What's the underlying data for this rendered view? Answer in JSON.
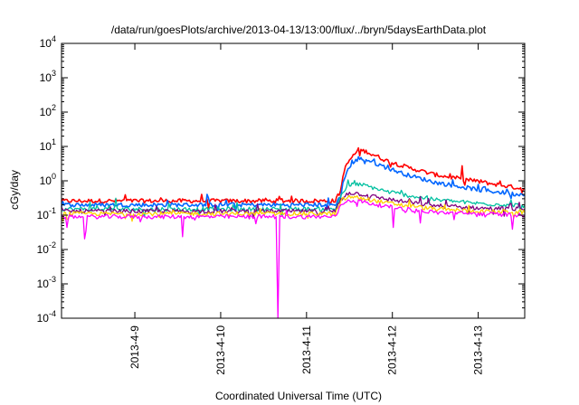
{
  "chart_data": {
    "type": "line",
    "title": "/data/run/goesPlots/archive/2013-04-13/13:00/flux/../bryn/5daysEarthData.plot",
    "xlabel": "Coordinated Universal Time (UTC)",
    "ylabel": "cGy/day",
    "y_scale": "log",
    "ylim": [
      0.0001,
      10000
    ],
    "xlim": [
      "2013-04-08T03:30",
      "2013-04-13T13:00"
    ],
    "grid": false,
    "legend": "none",
    "y_ticks": [
      {
        "base": "10",
        "exp": "-4",
        "value": 0.0001
      },
      {
        "base": "10",
        "exp": "-3",
        "value": 0.001
      },
      {
        "base": "10",
        "exp": "-2",
        "value": 0.01
      },
      {
        "base": "10",
        "exp": "-1",
        "value": 0.1
      },
      {
        "base": "10",
        "exp": "0",
        "value": 1
      },
      {
        "base": "10",
        "exp": "1",
        "value": 10
      },
      {
        "base": "10",
        "exp": "2",
        "value": 100
      },
      {
        "base": "10",
        "exp": "3",
        "value": 1000
      },
      {
        "base": "10",
        "exp": "4",
        "value": 10000
      }
    ],
    "x_ticks": [
      {
        "label": "2013-4-9",
        "value": "2013-04-09T00:00"
      },
      {
        "label": "2013-4-10",
        "value": "2013-04-10T00:00"
      },
      {
        "label": "2013-4-11",
        "value": "2013-04-11T00:00"
      },
      {
        "label": "2013-4-12",
        "value": "2013-04-12T00:00"
      },
      {
        "label": "2013-4-13",
        "value": "2013-04-13T00:00"
      }
    ],
    "series": [
      {
        "color": "#ff0000",
        "values": [
          {
            "x": "2013-04-08T03:30",
            "y": 0.26
          },
          {
            "x": "2013-04-09T00:00",
            "y": 0.26
          },
          {
            "x": "2013-04-10T00:00",
            "y": 0.26
          },
          {
            "x": "2013-04-11T00:00",
            "y": 0.26
          },
          {
            "x": "2013-04-11T08:00",
            "y": 0.26
          },
          {
            "x": "2013-04-11T09:30",
            "y": 0.5
          },
          {
            "x": "2013-04-11T10:30",
            "y": 2.0
          },
          {
            "x": "2013-04-11T12:00",
            "y": 4.0
          },
          {
            "x": "2013-04-11T14:30",
            "y": 8.0
          },
          {
            "x": "2013-04-11T17:00",
            "y": 7.0
          },
          {
            "x": "2013-04-11T22:00",
            "y": 4.0
          },
          {
            "x": "2013-04-12T04:00",
            "y": 2.5
          },
          {
            "x": "2013-04-12T12:00",
            "y": 1.5
          },
          {
            "x": "2013-04-13T00:00",
            "y": 0.95
          },
          {
            "x": "2013-04-13T13:00",
            "y": 0.58
          }
        ]
      },
      {
        "color": "#0066ff",
        "values": [
          {
            "x": "2013-04-08T03:30",
            "y": 0.2
          },
          {
            "x": "2013-04-09T00:00",
            "y": 0.2
          },
          {
            "x": "2013-04-10T00:00",
            "y": 0.2
          },
          {
            "x": "2013-04-11T00:00",
            "y": 0.2
          },
          {
            "x": "2013-04-11T08:00",
            "y": 0.2
          },
          {
            "x": "2013-04-11T09:30",
            "y": 0.35
          },
          {
            "x": "2013-04-11T10:30",
            "y": 1.2
          },
          {
            "x": "2013-04-11T12:00",
            "y": 2.5
          },
          {
            "x": "2013-04-11T14:30",
            "y": 4.5
          },
          {
            "x": "2013-04-11T17:00",
            "y": 4.0
          },
          {
            "x": "2013-04-11T22:00",
            "y": 2.5
          },
          {
            "x": "2013-04-12T04:00",
            "y": 1.5
          },
          {
            "x": "2013-04-12T12:00",
            "y": 0.9
          },
          {
            "x": "2013-04-13T00:00",
            "y": 0.55
          },
          {
            "x": "2013-04-13T13:00",
            "y": 0.38
          }
        ]
      },
      {
        "color": "#00c0a0",
        "values": [
          {
            "x": "2013-04-08T03:30",
            "y": 0.15
          },
          {
            "x": "2013-04-09T00:00",
            "y": 0.15
          },
          {
            "x": "2013-04-10T00:00",
            "y": 0.15
          },
          {
            "x": "2013-04-11T00:00",
            "y": 0.15
          },
          {
            "x": "2013-04-11T08:00",
            "y": 0.15
          },
          {
            "x": "2013-04-11T10:00",
            "y": 0.45
          },
          {
            "x": "2013-04-11T12:00",
            "y": 0.75
          },
          {
            "x": "2013-04-11T14:30",
            "y": 0.8
          },
          {
            "x": "2013-04-11T17:00",
            "y": 0.7
          },
          {
            "x": "2013-04-11T22:00",
            "y": 0.5
          },
          {
            "x": "2013-04-12T04:00",
            "y": 0.38
          },
          {
            "x": "2013-04-12T12:00",
            "y": 0.28
          },
          {
            "x": "2013-04-13T00:00",
            "y": 0.22
          },
          {
            "x": "2013-04-13T13:00",
            "y": 0.19
          }
        ]
      },
      {
        "color": "#800080",
        "values": [
          {
            "x": "2013-04-08T03:30",
            "y": 0.13
          },
          {
            "x": "2013-04-09T00:00",
            "y": 0.13
          },
          {
            "x": "2013-04-10T00:00",
            "y": 0.13
          },
          {
            "x": "2013-04-11T00:00",
            "y": 0.13
          },
          {
            "x": "2013-04-11T08:00",
            "y": 0.13
          },
          {
            "x": "2013-04-11T10:00",
            "y": 0.35
          },
          {
            "x": "2013-04-11T12:00",
            "y": 0.45
          },
          {
            "x": "2013-04-11T14:30",
            "y": 0.42
          },
          {
            "x": "2013-04-11T17:00",
            "y": 0.38
          },
          {
            "x": "2013-04-11T22:00",
            "y": 0.3
          },
          {
            "x": "2013-04-12T04:00",
            "y": 0.24
          },
          {
            "x": "2013-04-12T12:00",
            "y": 0.19
          },
          {
            "x": "2013-04-13T00:00",
            "y": 0.16
          },
          {
            "x": "2013-04-13T13:00",
            "y": 0.15
          }
        ]
      },
      {
        "color": "#ffd000",
        "values": [
          {
            "x": "2013-04-08T03:30",
            "y": 0.11
          },
          {
            "x": "2013-04-09T00:00",
            "y": 0.11
          },
          {
            "x": "2013-04-10T00:00",
            "y": 0.11
          },
          {
            "x": "2013-04-11T00:00",
            "y": 0.11
          },
          {
            "x": "2013-04-11T08:00",
            "y": 0.11
          },
          {
            "x": "2013-04-11T10:00",
            "y": 0.28
          },
          {
            "x": "2013-04-11T12:00",
            "y": 0.34
          },
          {
            "x": "2013-04-11T14:30",
            "y": 0.32
          },
          {
            "x": "2013-04-11T17:00",
            "y": 0.29
          },
          {
            "x": "2013-04-11T22:00",
            "y": 0.23
          },
          {
            "x": "2013-04-12T04:00",
            "y": 0.19
          },
          {
            "x": "2013-04-12T12:00",
            "y": 0.15
          },
          {
            "x": "2013-04-13T00:00",
            "y": 0.13
          },
          {
            "x": "2013-04-13T13:00",
            "y": 0.12
          }
        ]
      },
      {
        "color": "#ff00ff",
        "values": [
          {
            "x": "2013-04-08T03:30",
            "y": 0.09
          },
          {
            "x": "2013-04-09T00:00",
            "y": 0.09
          },
          {
            "x": "2013-04-10T00:00",
            "y": 0.09
          },
          {
            "x": "2013-04-10T15:30",
            "y": 0.09
          },
          {
            "x": "2013-04-10T16:00",
            "y": 0.0001
          },
          {
            "x": "2013-04-10T16:30",
            "y": 0.09
          },
          {
            "x": "2013-04-11T00:00",
            "y": 0.09
          },
          {
            "x": "2013-04-11T08:00",
            "y": 0.09
          },
          {
            "x": "2013-04-11T10:00",
            "y": 0.22
          },
          {
            "x": "2013-04-11T12:00",
            "y": 0.27
          },
          {
            "x": "2013-04-11T14:30",
            "y": 0.26
          },
          {
            "x": "2013-04-11T17:00",
            "y": 0.23
          },
          {
            "x": "2013-04-11T22:00",
            "y": 0.18
          },
          {
            "x": "2013-04-12T04:00",
            "y": 0.15
          },
          {
            "x": "2013-04-12T12:00",
            "y": 0.12
          },
          {
            "x": "2013-04-13T00:00",
            "y": 0.11
          },
          {
            "x": "2013-04-13T13:00",
            "y": 0.1
          }
        ]
      }
    ]
  }
}
